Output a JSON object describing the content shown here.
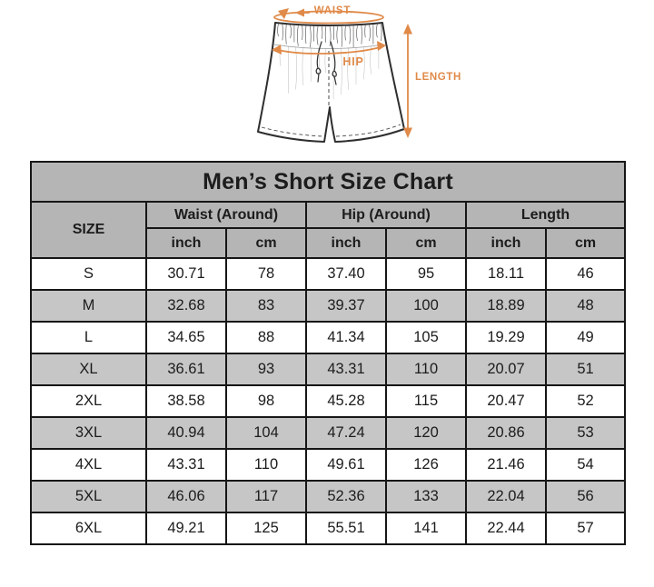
{
  "colors": {
    "accent_orange": "#E08A49",
    "header_gray": "#b5b5b5",
    "stripe_gray": "#c6c6c6",
    "border_black": "#161616"
  },
  "diagram": {
    "waist_label": "WAIST",
    "hip_label": "HIP",
    "length_label": "LENGTH"
  },
  "table": {
    "title": "Men’s Short Size Chart",
    "size_header": "SIZE",
    "group_labels": [
      "Waist (Around)",
      "Hip (Around)",
      "Length"
    ],
    "unit_headers": [
      "inch",
      "cm",
      "inch",
      "cm",
      "inch",
      "cm"
    ],
    "rows": [
      {
        "size": "S",
        "values": [
          "30.71",
          "78",
          "37.40",
          "95",
          "18.11",
          "46"
        ]
      },
      {
        "size": "M",
        "values": [
          "32.68",
          "83",
          "39.37",
          "100",
          "18.89",
          "48"
        ]
      },
      {
        "size": "L",
        "values": [
          "34.65",
          "88",
          "41.34",
          "105",
          "19.29",
          "49"
        ]
      },
      {
        "size": "XL",
        "values": [
          "36.61",
          "93",
          "43.31",
          "110",
          "20.07",
          "51"
        ]
      },
      {
        "size": "2XL",
        "values": [
          "38.58",
          "98",
          "45.28",
          "115",
          "20.47",
          "52"
        ]
      },
      {
        "size": "3XL",
        "values": [
          "40.94",
          "104",
          "47.24",
          "120",
          "20.86",
          "53"
        ]
      },
      {
        "size": "4XL",
        "values": [
          "43.31",
          "110",
          "49.61",
          "126",
          "21.46",
          "54"
        ]
      },
      {
        "size": "5XL",
        "values": [
          "46.06",
          "117",
          "52.36",
          "133",
          "22.04",
          "56"
        ]
      },
      {
        "size": "6XL",
        "values": [
          "49.21",
          "125",
          "55.51",
          "141",
          "22.44",
          "57"
        ]
      }
    ]
  },
  "chart_data": {
    "type": "table",
    "title": "Men’s Short Size Chart",
    "columns": [
      "SIZE",
      "Waist (Around) inch",
      "Waist (Around) cm",
      "Hip (Around) inch",
      "Hip (Around) cm",
      "Length inch",
      "Length cm"
    ],
    "rows": [
      [
        "S",
        30.71,
        78,
        37.4,
        95,
        18.11,
        46
      ],
      [
        "M",
        32.68,
        83,
        39.37,
        100,
        18.89,
        48
      ],
      [
        "L",
        34.65,
        88,
        41.34,
        105,
        19.29,
        49
      ],
      [
        "XL",
        36.61,
        93,
        43.31,
        110,
        20.07,
        51
      ],
      [
        "2XL",
        38.58,
        98,
        45.28,
        115,
        20.47,
        52
      ],
      [
        "3XL",
        40.94,
        104,
        47.24,
        120,
        20.86,
        53
      ],
      [
        "4XL",
        43.31,
        110,
        49.61,
        126,
        21.46,
        54
      ],
      [
        "5XL",
        46.06,
        117,
        52.36,
        133,
        22.04,
        56
      ],
      [
        "6XL",
        49.21,
        125,
        55.51,
        141,
        22.44,
        57
      ]
    ]
  }
}
